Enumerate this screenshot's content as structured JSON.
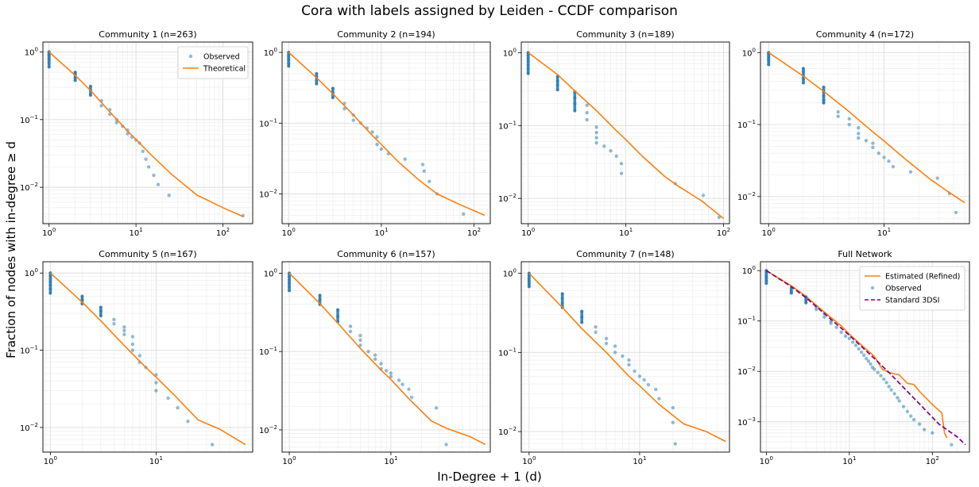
{
  "figure": {
    "suptitle": "Cora with labels assigned by Leiden - CCDF comparison",
    "supylabel": "Fraction of nodes with in-degree  ≥  d",
    "supxlabel": "In-Degree + 1 (d)"
  },
  "colors": {
    "observed": "#1f77b4",
    "theoretical": "#ff7f0e",
    "standard": "#800080",
    "grid": "#e5e5e5"
  },
  "chart_data": [
    {
      "type": "scatter",
      "title": "Community 1 (n=263)",
      "xscale": "log",
      "yscale": "log",
      "xlim": [
        0.85,
        220
      ],
      "ylim": [
        0.0029,
        1.4
      ],
      "grid": true,
      "legend": "top-right",
      "x_ticks": [
        "10^0",
        "10^1",
        "10^2"
      ],
      "y_ticks": [
        "10^0",
        "10^-1",
        "10^-2"
      ],
      "series": [
        {
          "name": "Observed",
          "kind": "points",
          "x": [
            1,
            1,
            1,
            1,
            1,
            1,
            1,
            2,
            2,
            2,
            2,
            3,
            3,
            3,
            4,
            4,
            5,
            5,
            6,
            6,
            7,
            8,
            8,
            9,
            10,
            11,
            12,
            13,
            14,
            16,
            18,
            24,
            170
          ],
          "y": [
            1.0,
            0.94,
            0.88,
            0.82,
            0.76,
            0.68,
            0.6,
            0.5,
            0.46,
            0.42,
            0.38,
            0.31,
            0.27,
            0.23,
            0.19,
            0.16,
            0.14,
            0.12,
            0.1,
            0.09,
            0.08,
            0.07,
            0.062,
            0.055,
            0.05,
            0.045,
            0.034,
            0.026,
            0.02,
            0.015,
            0.011,
            0.0076,
            0.0038
          ]
        },
        {
          "name": "Theoretical",
          "kind": "line",
          "x": [
            1,
            2,
            3,
            5,
            8,
            10,
            15,
            25,
            50,
            100,
            170
          ],
          "y": [
            1.0,
            0.45,
            0.27,
            0.13,
            0.068,
            0.051,
            0.03,
            0.016,
            0.0077,
            0.005,
            0.0037
          ]
        }
      ]
    },
    {
      "type": "scatter",
      "title": "Community 2 (n=194)",
      "xscale": "log",
      "yscale": "log",
      "xlim": [
        0.85,
        150
      ],
      "ylim": [
        0.0038,
        1.4
      ],
      "grid": true,
      "x_ticks": [
        "10^0",
        "10^1",
        "10^2"
      ],
      "y_ticks": [
        "10^0",
        "10^-1",
        "10^-2"
      ],
      "series": [
        {
          "kind": "points",
          "x": [
            1,
            1,
            1,
            1,
            1,
            1,
            2,
            2,
            2,
            2,
            3,
            3,
            3,
            4,
            4,
            5,
            5,
            6,
            7,
            8,
            9,
            9,
            10,
            12,
            18,
            28,
            29,
            33,
            40,
            77
          ],
          "y": [
            1.0,
            0.92,
            0.85,
            0.78,
            0.7,
            0.64,
            0.5,
            0.45,
            0.4,
            0.36,
            0.31,
            0.27,
            0.23,
            0.19,
            0.16,
            0.13,
            0.11,
            0.1,
            0.085,
            0.075,
            0.064,
            0.05,
            0.043,
            0.037,
            0.031,
            0.026,
            0.021,
            0.015,
            0.01,
            0.0052
          ]
        },
        {
          "kind": "line",
          "x": [
            1,
            2,
            3,
            5,
            8,
            10,
            15,
            25,
            40,
            70,
            130
          ],
          "y": [
            1.0,
            0.44,
            0.26,
            0.13,
            0.067,
            0.05,
            0.029,
            0.016,
            0.01,
            0.0071,
            0.005
          ]
        }
      ]
    },
    {
      "type": "scatter",
      "title": "Community 3 (n=189)",
      "xscale": "log",
      "yscale": "log",
      "xlim": [
        0.85,
        115
      ],
      "ylim": [
        0.0045,
        1.4
      ],
      "grid": true,
      "x_ticks": [
        "10^0",
        "10^1",
        "10^2"
      ],
      "y_ticks": [
        "10^0",
        "10^-1",
        "10^-2"
      ],
      "series": [
        {
          "kind": "points",
          "x": [
            1,
            1,
            1,
            1,
            1,
            1,
            1,
            2,
            2,
            2,
            2,
            3,
            3,
            3,
            3,
            4,
            4,
            4,
            5,
            5,
            5,
            5,
            6,
            7,
            8,
            9,
            9,
            32,
            62,
            90
          ],
          "y": [
            1.0,
            0.92,
            0.84,
            0.76,
            0.68,
            0.6,
            0.52,
            0.47,
            0.41,
            0.36,
            0.31,
            0.29,
            0.24,
            0.2,
            0.16,
            0.19,
            0.15,
            0.12,
            0.095,
            0.08,
            0.068,
            0.058,
            0.052,
            0.045,
            0.038,
            0.03,
            0.022,
            0.016,
            0.011,
            0.0055
          ]
        },
        {
          "kind": "line",
          "x": [
            1,
            2,
            3,
            5,
            8,
            10,
            15,
            25,
            35,
            60,
            100
          ],
          "y": [
            1.0,
            0.5,
            0.3,
            0.16,
            0.085,
            0.064,
            0.037,
            0.02,
            0.0145,
            0.0092,
            0.0053
          ]
        }
      ]
    },
    {
      "type": "scatter",
      "title": "Community 4 (n=172)",
      "xscale": "log",
      "yscale": "log",
      "xlim": [
        0.85,
        55
      ],
      "ylim": [
        0.0042,
        1.4
      ],
      "grid": true,
      "x_ticks": [
        "10^0",
        "10^1"
      ],
      "y_ticks": [
        "10^0",
        "10^-1",
        "10^-2"
      ],
      "series": [
        {
          "kind": "points",
          "x": [
            1,
            1,
            1,
            1,
            1,
            1,
            2,
            2,
            2,
            2,
            2,
            3,
            3,
            3,
            3,
            3,
            4,
            4,
            5,
            5,
            6,
            6,
            6,
            7,
            8,
            8,
            9,
            10,
            11,
            12,
            17,
            29,
            37,
            42
          ],
          "y": [
            1.0,
            0.94,
            0.88,
            0.82,
            0.76,
            0.68,
            0.6,
            0.54,
            0.48,
            0.43,
            0.38,
            0.33,
            0.29,
            0.25,
            0.22,
            0.2,
            0.15,
            0.13,
            0.12,
            0.1,
            0.09,
            0.075,
            0.065,
            0.06,
            0.055,
            0.048,
            0.04,
            0.035,
            0.031,
            0.026,
            0.022,
            0.018,
            0.011,
            0.006
          ]
        },
        {
          "kind": "line",
          "x": [
            1,
            2,
            3,
            5,
            8,
            10,
            15,
            25,
            35,
            50
          ],
          "y": [
            1.0,
            0.47,
            0.29,
            0.15,
            0.079,
            0.059,
            0.034,
            0.0175,
            0.012,
            0.0082
          ]
        }
      ]
    },
    {
      "type": "scatter",
      "title": "Community 5 (n=167)",
      "xscale": "log",
      "yscale": "log",
      "xlim": [
        0.85,
        82
      ],
      "ylim": [
        0.0048,
        1.4
      ],
      "grid": true,
      "x_ticks": [
        "10^0",
        "10^1"
      ],
      "y_ticks": [
        "10^0",
        "10^-1",
        "10^-2"
      ],
      "series": [
        {
          "kind": "points",
          "x": [
            1,
            1,
            1,
            1,
            1,
            1,
            1,
            2,
            2,
            2,
            3,
            3,
            3,
            4,
            4,
            5,
            5,
            5,
            6,
            6,
            6,
            7,
            7,
            8,
            10,
            10,
            10,
            13,
            16,
            20,
            34
          ],
          "y": [
            1.0,
            0.92,
            0.84,
            0.77,
            0.7,
            0.62,
            0.55,
            0.5,
            0.45,
            0.4,
            0.36,
            0.32,
            0.28,
            0.25,
            0.22,
            0.2,
            0.18,
            0.16,
            0.15,
            0.12,
            0.1,
            0.085,
            0.07,
            0.06,
            0.048,
            0.038,
            0.03,
            0.024,
            0.018,
            0.012,
            0.006
          ]
        },
        {
          "kind": "line",
          "x": [
            1,
            2,
            3,
            5,
            8,
            10,
            15,
            25,
            40,
            70
          ],
          "y": [
            1.0,
            0.42,
            0.24,
            0.115,
            0.06,
            0.045,
            0.026,
            0.0125,
            0.0095,
            0.006
          ]
        }
      ]
    },
    {
      "type": "scatter",
      "title": "Community 6 (n=157)",
      "xscale": "log",
      "yscale": "log",
      "xlim": [
        0.85,
        95
      ],
      "ylim": [
        0.0052,
        1.4
      ],
      "grid": true,
      "x_ticks": [
        "10^0",
        "10^1"
      ],
      "y_ticks": [
        "10^0",
        "10^-1",
        "10^-2"
      ],
      "series": [
        {
          "kind": "points",
          "x": [
            1,
            1,
            1,
            1,
            1,
            1,
            2,
            2,
            2,
            3,
            3,
            3,
            4,
            4,
            5,
            5,
            5,
            6,
            7,
            7,
            8,
            8,
            9,
            10,
            10,
            12,
            13,
            15,
            16,
            28,
            35
          ],
          "y": [
            1.0,
            0.9,
            0.82,
            0.74,
            0.67,
            0.6,
            0.52,
            0.46,
            0.4,
            0.34,
            0.28,
            0.24,
            0.21,
            0.18,
            0.16,
            0.14,
            0.12,
            0.1,
            0.09,
            0.08,
            0.07,
            0.06,
            0.057,
            0.053,
            0.048,
            0.043,
            0.038,
            0.033,
            0.026,
            0.019,
            0.0065
          ]
        },
        {
          "kind": "line",
          "x": [
            1,
            2,
            3,
            5,
            8,
            10,
            15,
            25,
            35,
            60,
            85
          ],
          "y": [
            1.0,
            0.41,
            0.23,
            0.11,
            0.058,
            0.044,
            0.025,
            0.013,
            0.0105,
            0.0082,
            0.0065
          ]
        }
      ]
    },
    {
      "type": "scatter",
      "title": "Community 7 (n=148)",
      "xscale": "log",
      "yscale": "log",
      "xlim": [
        0.85,
        65
      ],
      "ylim": [
        0.0055,
        1.4
      ],
      "grid": true,
      "x_ticks": [
        "10^0",
        "10^1"
      ],
      "y_ticks": [
        "10^0",
        "10^-1",
        "10^-2"
      ],
      "series": [
        {
          "kind": "points",
          "x": [
            1,
            1,
            1,
            1,
            1,
            1,
            2,
            2,
            2,
            2,
            3,
            3,
            3,
            4,
            4,
            5,
            5,
            6,
            6,
            7,
            8,
            8,
            9,
            10,
            11,
            12,
            14,
            15,
            20,
            20,
            21
          ],
          "y": [
            1.0,
            0.93,
            0.86,
            0.8,
            0.74,
            0.68,
            0.55,
            0.48,
            0.42,
            0.37,
            0.33,
            0.28,
            0.24,
            0.21,
            0.18,
            0.15,
            0.13,
            0.12,
            0.1,
            0.09,
            0.08,
            0.07,
            0.058,
            0.05,
            0.045,
            0.039,
            0.034,
            0.026,
            0.02,
            0.013,
            0.007
          ]
        },
        {
          "kind": "line",
          "x": [
            1,
            2,
            3,
            5,
            8,
            10,
            15,
            25,
            40,
            60
          ],
          "y": [
            1.0,
            0.37,
            0.2,
            0.1,
            0.05,
            0.038,
            0.022,
            0.0125,
            0.01,
            0.0075
          ]
        }
      ]
    },
    {
      "type": "scatter",
      "title": "Full Network",
      "xscale": "log",
      "yscale": "log",
      "xlim": [
        0.85,
        280
      ],
      "ylim": [
        0.00025,
        1.5
      ],
      "grid": true,
      "legend": "top-right",
      "x_ticks": [
        "10^0",
        "10^1",
        "10^2"
      ],
      "y_ticks": [
        "10^0",
        "10^-1",
        "10^-2",
        "10^-3"
      ],
      "series": [
        {
          "name": "Estimated (Refined)",
          "kind": "line",
          "color_key": "theoretical",
          "x": [
            1,
            2,
            3,
            5,
            8,
            10,
            15,
            20,
            25,
            30,
            40,
            50,
            60,
            70,
            80,
            100,
            130,
            140,
            150
          ],
          "y": [
            1.0,
            0.5,
            0.31,
            0.15,
            0.08,
            0.055,
            0.03,
            0.02,
            0.011,
            0.0095,
            0.0085,
            0.0058,
            0.0055,
            0.004,
            0.0032,
            0.0022,
            0.0015,
            0.0006,
            0.00048
          ]
        },
        {
          "name": "Observed",
          "kind": "points",
          "x": [
            1,
            1,
            1,
            1,
            1,
            1,
            2,
            2,
            2,
            3,
            3,
            3,
            4,
            4,
            5,
            5,
            6,
            6,
            7,
            8,
            9,
            10,
            11,
            12,
            13,
            14,
            15,
            16,
            17,
            18,
            19,
            20,
            22,
            24,
            26,
            28,
            30,
            32,
            35,
            38,
            40,
            45,
            50,
            55,
            60,
            70,
            80,
            100,
            170
          ],
          "y": [
            1.0,
            0.9,
            0.8,
            0.72,
            0.64,
            0.56,
            0.45,
            0.4,
            0.36,
            0.3,
            0.26,
            0.23,
            0.19,
            0.17,
            0.14,
            0.12,
            0.1,
            0.09,
            0.075,
            0.06,
            0.05,
            0.045,
            0.038,
            0.033,
            0.028,
            0.024,
            0.021,
            0.018,
            0.016,
            0.014,
            0.012,
            0.011,
            0.0095,
            0.0082,
            0.007,
            0.006,
            0.005,
            0.0043,
            0.0036,
            0.003,
            0.0026,
            0.002,
            0.0016,
            0.0013,
            0.0011,
            0.0009,
            0.0007,
            0.0006,
            0.00035
          ]
        },
        {
          "name": "Standard 3DSI",
          "kind": "dashed",
          "color_key": "standard",
          "x": [
            1,
            2,
            3,
            5,
            8,
            10,
            15,
            20,
            30,
            50,
            80,
            120,
            200,
            250
          ],
          "y": [
            1.0,
            0.48,
            0.29,
            0.14,
            0.072,
            0.052,
            0.028,
            0.018,
            0.0095,
            0.004,
            0.0018,
            0.0009,
            0.0005,
            0.00035
          ]
        }
      ]
    }
  ]
}
